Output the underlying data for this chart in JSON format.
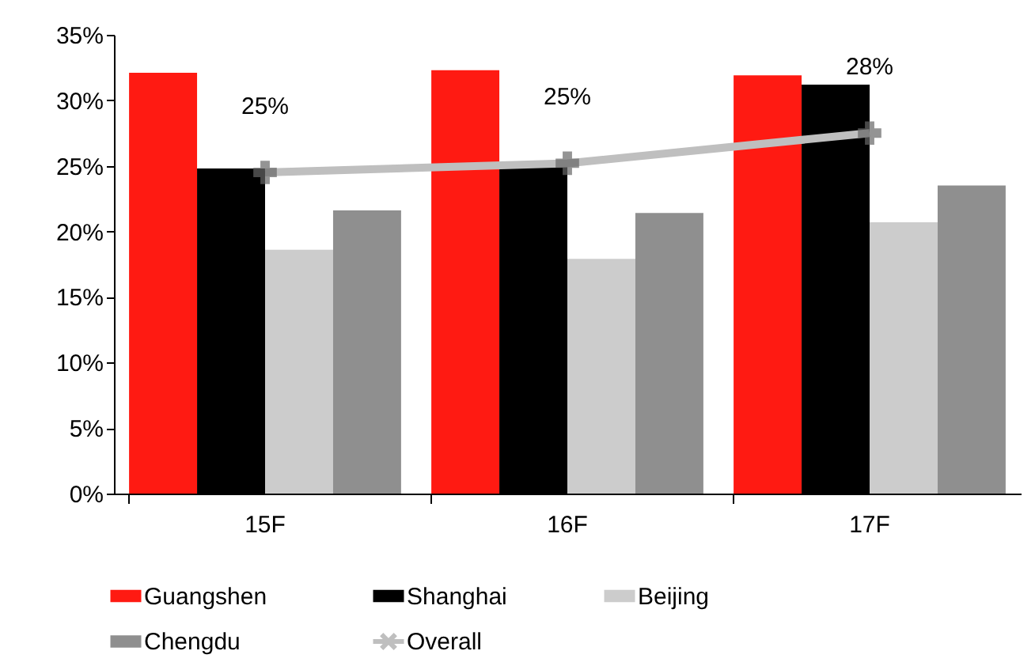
{
  "chart_data": {
    "type": "bar",
    "categories": [
      "15F",
      "16F",
      "17F"
    ],
    "series": [
      {
        "name": "Guangshen",
        "color": "#ff1a12",
        "values": [
          32.1,
          32.3,
          31.9
        ]
      },
      {
        "name": "Shanghai",
        "color": "#000000",
        "values": [
          24.8,
          25.2,
          31.2
        ]
      },
      {
        "name": "Beijing",
        "color": "#cccccc",
        "values": [
          18.6,
          17.9,
          20.7
        ]
      },
      {
        "name": "Chengdu",
        "color": "#8f8f8f",
        "values": [
          21.6,
          21.4,
          23.5
        ]
      },
      {
        "name": "Overall",
        "type": "line",
        "color": "#bfbfbf",
        "values": [
          24.5,
          25.2,
          27.5
        ],
        "value_labels": [
          "25%",
          "25%",
          "28%"
        ]
      }
    ],
    "ylim": [
      0,
      35
    ],
    "yticks": [
      {
        "value": 0,
        "label": "0%"
      },
      {
        "value": 5,
        "label": "5%"
      },
      {
        "value": 10,
        "label": "10%"
      },
      {
        "value": 15,
        "label": "15%"
      },
      {
        "value": 20,
        "label": "20%"
      },
      {
        "value": 25,
        "label": "25%"
      },
      {
        "value": 30,
        "label": "30%"
      },
      {
        "value": 35,
        "label": "35%"
      }
    ],
    "grid": false,
    "legend": "bottom",
    "marker": "cross",
    "line_style": "solid"
  }
}
